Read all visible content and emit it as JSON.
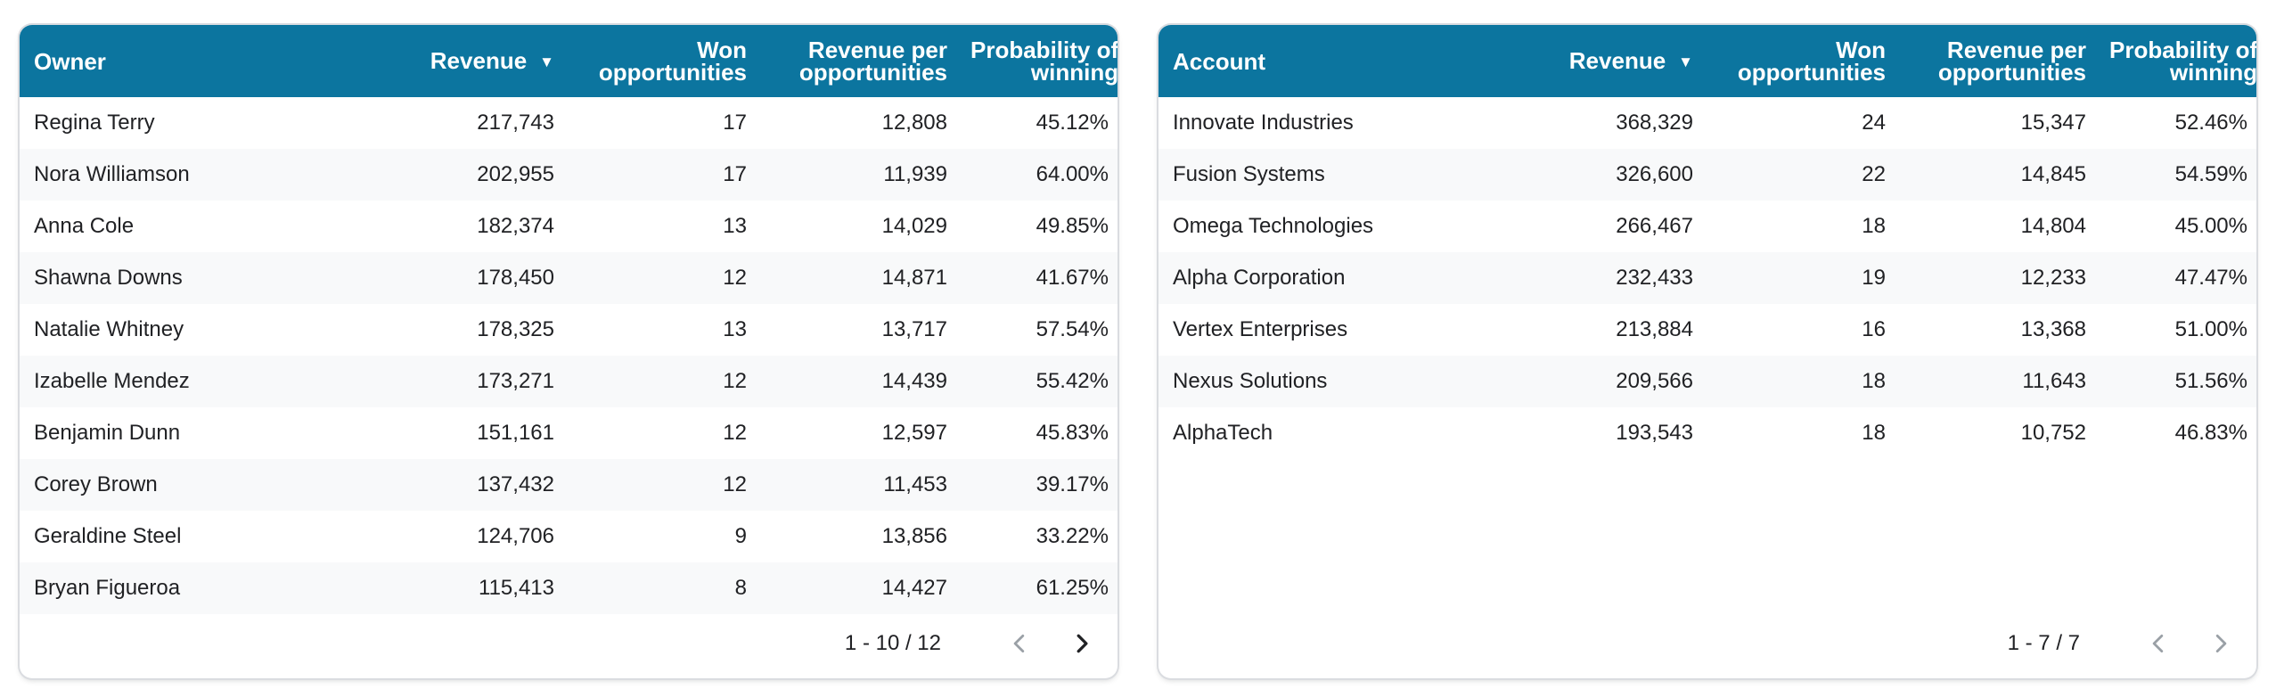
{
  "tables": [
    {
      "headers": {
        "col1": "Owner",
        "revenue": "Revenue",
        "won_line1": "Won",
        "won_line2": "opportunities",
        "rpo_line1": "Revenue per",
        "rpo_line2": "opportunities",
        "prob_line1": "Probability of",
        "prob_line2": "winning"
      },
      "sort_icon": "sort-descending-icon",
      "rows": [
        {
          "name": "Regina Terry",
          "revenue": "217,743",
          "won": "17",
          "rpo": "12,808",
          "prob": "45.12%"
        },
        {
          "name": "Nora Williamson",
          "revenue": "202,955",
          "won": "17",
          "rpo": "11,939",
          "prob": "64.00%"
        },
        {
          "name": "Anna Cole",
          "revenue": "182,374",
          "won": "13",
          "rpo": "14,029",
          "prob": "49.85%"
        },
        {
          "name": "Shawna Downs",
          "revenue": "178,450",
          "won": "12",
          "rpo": "14,871",
          "prob": "41.67%"
        },
        {
          "name": "Natalie Whitney",
          "revenue": "178,325",
          "won": "13",
          "rpo": "13,717",
          "prob": "57.54%"
        },
        {
          "name": "Izabelle Mendez",
          "revenue": "173,271",
          "won": "12",
          "rpo": "14,439",
          "prob": "55.42%"
        },
        {
          "name": "Benjamin Dunn",
          "revenue": "151,161",
          "won": "12",
          "rpo": "12,597",
          "prob": "45.83%"
        },
        {
          "name": "Corey Brown",
          "revenue": "137,432",
          "won": "12",
          "rpo": "11,453",
          "prob": "39.17%"
        },
        {
          "name": "Geraldine Steel",
          "revenue": "124,706",
          "won": "9",
          "rpo": "13,856",
          "prob": "33.22%"
        },
        {
          "name": "Bryan Figueroa",
          "revenue": "115,413",
          "won": "8",
          "rpo": "14,427",
          "prob": "61.25%"
        }
      ],
      "pagination": {
        "range": "1 - 10 / 12",
        "prev_enabled": false,
        "next_enabled": true
      }
    },
    {
      "headers": {
        "col1": "Account",
        "revenue": "Revenue",
        "won_line1": "Won",
        "won_line2": "opportunities",
        "rpo_line1": "Revenue per",
        "rpo_line2": "opportunities",
        "prob_line1": "Probability of",
        "prob_line2": "winning"
      },
      "sort_icon": "sort-descending-icon",
      "rows": [
        {
          "name": "Innovate Industries",
          "revenue": "368,329",
          "won": "24",
          "rpo": "15,347",
          "prob": "52.46%"
        },
        {
          "name": "Fusion Systems",
          "revenue": "326,600",
          "won": "22",
          "rpo": "14,845",
          "prob": "54.59%"
        },
        {
          "name": "Omega Technologies",
          "revenue": "266,467",
          "won": "18",
          "rpo": "14,804",
          "prob": "45.00%"
        },
        {
          "name": "Alpha Corporation",
          "revenue": "232,433",
          "won": "19",
          "rpo": "12,233",
          "prob": "47.47%"
        },
        {
          "name": "Vertex Enterprises",
          "revenue": "213,884",
          "won": "16",
          "rpo": "13,368",
          "prob": "51.00%"
        },
        {
          "name": "Nexus Solutions",
          "revenue": "209,566",
          "won": "18",
          "rpo": "11,643",
          "prob": "51.56%"
        },
        {
          "name": "AlphaTech",
          "revenue": "193,543",
          "won": "18",
          "rpo": "10,752",
          "prob": "46.83%"
        }
      ],
      "pagination": {
        "range": "1 - 7 / 7",
        "prev_enabled": false,
        "next_enabled": false
      }
    }
  ],
  "colors": {
    "header_bg": "#0c759f",
    "header_text": "#ffffff",
    "row_alt_bg": "#f8f9fa",
    "nav_enabled": "#202124",
    "nav_disabled": "#9aa0a6"
  }
}
